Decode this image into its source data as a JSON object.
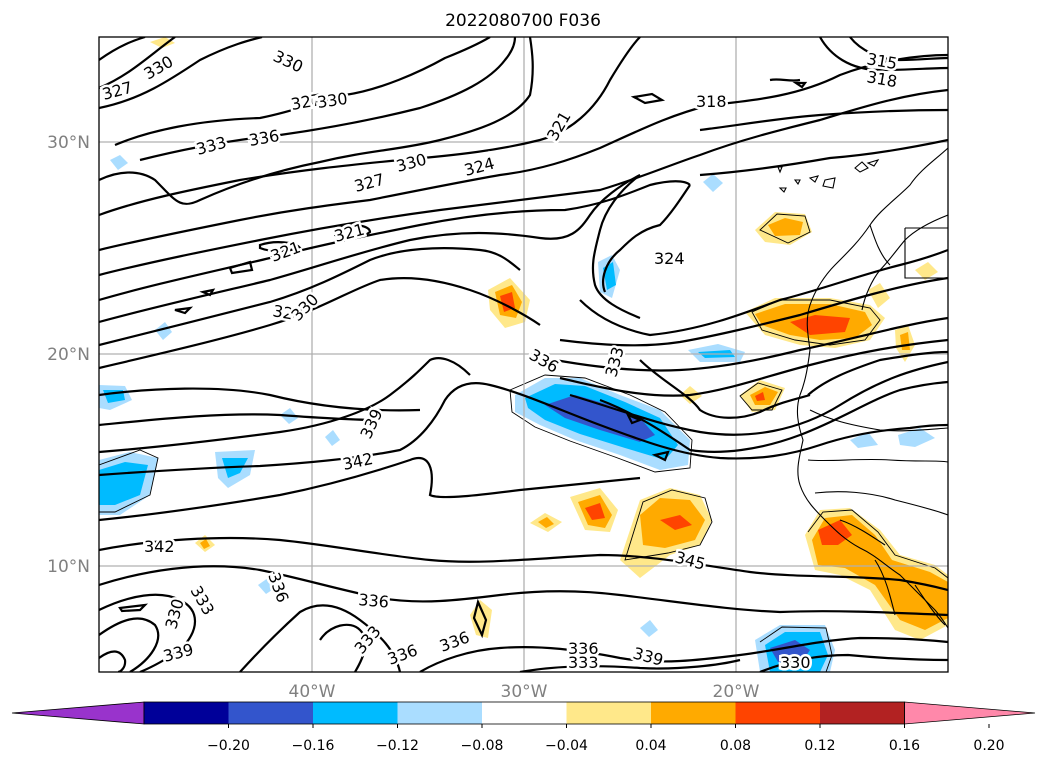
{
  "chart_data": {
    "type": "contour_map",
    "title": "2022080700 F036",
    "lat_ticks": [
      "30°N",
      "20°N",
      "10°N"
    ],
    "lon_ticks": [
      "40°W",
      "30°W",
      "20°W"
    ],
    "lon_range": [
      -50,
      -10
    ],
    "lat_range": [
      5,
      35
    ],
    "grid": true,
    "contour_levels": [
      315,
      318,
      321,
      324,
      327,
      330,
      333,
      336,
      339,
      342,
      345
    ],
    "contour_labels": [
      "330",
      "327",
      "330",
      "327",
      "330",
      "336",
      "333",
      "330",
      "327",
      "324",
      "321",
      "318",
      "315",
      "318",
      "321",
      "321",
      "324",
      "327",
      "330",
      "336",
      "333",
      "339",
      "342",
      "342",
      "345",
      "333",
      "330",
      "336",
      "336",
      "333",
      "339",
      "336",
      "339",
      "336",
      "333",
      "336",
      "330"
    ],
    "colorbar": {
      "ticks": [
        "−0.20",
        "−0.16",
        "−0.12",
        "−0.08",
        "−0.04",
        "0.04",
        "0.08",
        "0.12",
        "0.16",
        "0.20"
      ],
      "colors": [
        "#9933cc",
        "#000099",
        "#3355cc",
        "#00bbff",
        "#aaddff",
        "#ffffff",
        "#ffe88a",
        "#ffaa00",
        "#ff4400",
        "#b22222",
        "#ff88aa"
      ],
      "extend": "both"
    }
  }
}
